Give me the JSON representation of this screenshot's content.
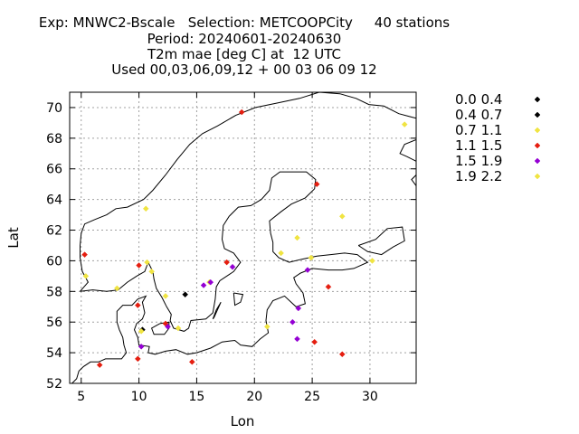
{
  "chart_data": {
    "type": "scatter",
    "title_lines": [
      "Exp: MNWC2-Bscale   Selection: METCOOPCity     40 stations",
      "Period: 20240601-20240630",
      "T2m mae [deg C] at  12 UTC",
      "Used 00,03,06,09,12 + 00 03 06 09 12"
    ],
    "xlabel": "Lon",
    "ylabel": "Lat",
    "xlim": [
      4,
      34
    ],
    "ylim": [
      52,
      71
    ],
    "xticks": [
      5,
      10,
      15,
      20,
      25,
      30
    ],
    "yticks": [
      52,
      54,
      56,
      58,
      60,
      62,
      64,
      66,
      68,
      70
    ],
    "grid": true,
    "legend_position": "right",
    "series": [
      {
        "name": "0.0 0.4",
        "color": "#000000",
        "points": [
          [
            14.0,
            57.8
          ]
        ]
      },
      {
        "name": "0.4 0.7",
        "color": "#000000",
        "points": [
          [
            10.3,
            55.5
          ]
        ]
      },
      {
        "name": "0.7 1.1",
        "color": "#f0e442",
        "points": [
          [
            10.6,
            63.4
          ],
          [
            10.7,
            59.9
          ],
          [
            11.1,
            59.3
          ],
          [
            8.1,
            58.2
          ],
          [
            5.4,
            59.0
          ],
          [
            12.3,
            57.7
          ],
          [
            10.2,
            55.4
          ],
          [
            13.4,
            55.6
          ],
          [
            21.1,
            55.7
          ],
          [
            22.3,
            60.5
          ],
          [
            23.7,
            61.5
          ],
          [
            24.9,
            60.2
          ],
          [
            27.6,
            62.9
          ],
          [
            30.2,
            60.0
          ],
          [
            33.0,
            68.9
          ],
          [
            16.1,
            58.6
          ]
        ]
      },
      {
        "name": "1.1 1.5",
        "color": "#e51e10",
        "points": [
          [
            5.3,
            60.4
          ],
          [
            10.0,
            59.7
          ],
          [
            17.6,
            59.9
          ],
          [
            25.4,
            65.0
          ],
          [
            26.4,
            58.3
          ],
          [
            9.9,
            57.1
          ],
          [
            12.3,
            55.9
          ],
          [
            14.6,
            53.4
          ],
          [
            9.9,
            53.6
          ],
          [
            25.2,
            54.7
          ],
          [
            27.6,
            53.9
          ],
          [
            6.6,
            53.2
          ],
          [
            18.9,
            69.7
          ]
        ]
      },
      {
        "name": "1.5 1.9",
        "color": "#9400d3",
        "points": [
          [
            15.6,
            58.4
          ],
          [
            16.2,
            58.6
          ],
          [
            18.1,
            59.6
          ],
          [
            24.6,
            59.4
          ],
          [
            23.8,
            56.9
          ],
          [
            23.3,
            56.0
          ],
          [
            23.7,
            54.9
          ],
          [
            10.2,
            54.4
          ],
          [
            12.5,
            55.7
          ]
        ]
      },
      {
        "name": "1.9 2.2",
        "color": "#f0e442",
        "points": []
      }
    ]
  },
  "map_coastlines": [
    [
      [
        4.9,
        58.0
      ],
      [
        5.6,
        58.6
      ],
      [
        5.1,
        59.3
      ],
      [
        4.9,
        60.2
      ],
      [
        4.9,
        61.0
      ],
      [
        5.0,
        61.8
      ],
      [
        5.3,
        62.4
      ],
      [
        6.2,
        62.7
      ],
      [
        7.2,
        63.0
      ],
      [
        8.0,
        63.4
      ],
      [
        9.0,
        63.5
      ],
      [
        10.4,
        64.0
      ],
      [
        11.2,
        64.6
      ],
      [
        12.3,
        65.6
      ],
      [
        13.3,
        66.6
      ],
      [
        14.4,
        67.6
      ],
      [
        15.5,
        68.3
      ],
      [
        16.8,
        68.8
      ],
      [
        18.4,
        69.5
      ],
      [
        20.1,
        70.0
      ],
      [
        22.0,
        70.3
      ],
      [
        23.9,
        70.6
      ],
      [
        25.6,
        71.0
      ],
      [
        27.4,
        70.9
      ],
      [
        28.8,
        70.6
      ],
      [
        29.9,
        70.2
      ],
      [
        31.2,
        70.1
      ],
      [
        32.5,
        69.6
      ],
      [
        33.5,
        69.4
      ],
      [
        34.0,
        69.3
      ]
    ],
    [
      [
        4.9,
        58.0
      ],
      [
        6.0,
        58.1
      ],
      [
        7.2,
        58.0
      ],
      [
        8.2,
        58.1
      ],
      [
        9.0,
        58.6
      ],
      [
        9.8,
        59.0
      ],
      [
        10.5,
        59.3
      ],
      [
        10.8,
        59.9
      ],
      [
        11.2,
        59.3
      ],
      [
        11.3,
        58.8
      ],
      [
        11.5,
        58.2
      ],
      [
        12.0,
        57.6
      ],
      [
        12.4,
        57.0
      ],
      [
        12.8,
        56.5
      ],
      [
        12.7,
        56.1
      ],
      [
        13.0,
        55.6
      ],
      [
        13.9,
        55.4
      ],
      [
        14.3,
        55.6
      ],
      [
        14.5,
        56.1
      ],
      [
        15.8,
        56.2
      ],
      [
        16.4,
        56.6
      ],
      [
        16.6,
        57.5
      ],
      [
        16.7,
        58.3
      ],
      [
        17.0,
        58.7
      ],
      [
        18.2,
        59.3
      ],
      [
        18.8,
        59.9
      ],
      [
        18.2,
        60.5
      ],
      [
        17.4,
        60.8
      ],
      [
        17.2,
        61.4
      ],
      [
        17.3,
        62.3
      ],
      [
        17.8,
        62.9
      ],
      [
        18.6,
        63.5
      ],
      [
        19.7,
        63.6
      ],
      [
        20.6,
        64.0
      ],
      [
        21.3,
        64.6
      ],
      [
        21.5,
        65.4
      ],
      [
        22.2,
        65.8
      ],
      [
        23.3,
        65.8
      ],
      [
        24.5,
        65.8
      ],
      [
        25.3,
        65.3
      ],
      [
        25.2,
        64.7
      ],
      [
        24.4,
        64.1
      ],
      [
        23.2,
        63.7
      ],
      [
        22.3,
        63.2
      ],
      [
        21.3,
        62.6
      ],
      [
        21.4,
        61.8
      ],
      [
        21.6,
        61.2
      ],
      [
        21.6,
        60.6
      ],
      [
        22.1,
        60.2
      ],
      [
        23.0,
        59.9
      ],
      [
        24.1,
        60.1
      ],
      [
        25.4,
        60.3
      ],
      [
        26.6,
        60.4
      ],
      [
        27.8,
        60.5
      ],
      [
        28.9,
        60.4
      ],
      [
        29.8,
        59.9
      ],
      [
        28.6,
        59.5
      ],
      [
        27.6,
        59.4
      ],
      [
        26.4,
        59.4
      ],
      [
        25.0,
        59.5
      ],
      [
        24.0,
        59.2
      ],
      [
        23.4,
        58.9
      ],
      [
        23.6,
        58.5
      ],
      [
        24.2,
        57.9
      ],
      [
        24.4,
        57.2
      ],
      [
        23.6,
        57.0
      ],
      [
        22.6,
        57.7
      ],
      [
        21.6,
        57.4
      ],
      [
        21.1,
        56.8
      ],
      [
        21.0,
        56.1
      ],
      [
        21.2,
        55.3
      ],
      [
        20.5,
        54.9
      ],
      [
        19.8,
        54.4
      ],
      [
        18.8,
        54.5
      ],
      [
        18.3,
        54.8
      ],
      [
        17.2,
        54.7
      ],
      [
        16.2,
        54.3
      ],
      [
        15.0,
        54.0
      ],
      [
        14.2,
        53.9
      ],
      [
        13.2,
        54.2
      ],
      [
        12.3,
        54.1
      ],
      [
        11.4,
        53.9
      ],
      [
        10.8,
        54.0
      ],
      [
        10.9,
        54.4
      ],
      [
        10.0,
        54.5
      ],
      [
        9.9,
        55.0
      ],
      [
        9.6,
        55.5
      ],
      [
        9.8,
        55.9
      ],
      [
        10.3,
        56.2
      ],
      [
        10.5,
        56.6
      ],
      [
        10.3,
        57.3
      ],
      [
        10.6,
        57.7
      ],
      [
        9.9,
        57.5
      ],
      [
        9.4,
        57.1
      ],
      [
        8.6,
        57.1
      ],
      [
        8.1,
        56.7
      ],
      [
        8.1,
        56.0
      ],
      [
        8.3,
        55.5
      ],
      [
        8.6,
        55.0
      ],
      [
        8.7,
        54.5
      ],
      [
        8.9,
        54.0
      ],
      [
        8.5,
        53.6
      ],
      [
        8.0,
        53.6
      ],
      [
        7.1,
        53.6
      ],
      [
        6.5,
        53.4
      ],
      [
        5.8,
        53.4
      ],
      [
        5.2,
        53.1
      ],
      [
        4.8,
        52.8
      ],
      [
        4.6,
        52.3
      ],
      [
        4.2,
        52.0
      ],
      [
        4.0,
        52.0
      ]
    ],
    [
      [
        11.8,
        55.9
      ],
      [
        12.6,
        56.0
      ],
      [
        12.6,
        55.6
      ],
      [
        12.2,
        55.2
      ],
      [
        11.3,
        55.2
      ],
      [
        11.1,
        55.6
      ],
      [
        11.8,
        55.9
      ]
    ],
    [
      [
        18.2,
        57.9
      ],
      [
        19.0,
        57.8
      ],
      [
        18.8,
        57.3
      ],
      [
        18.3,
        57.1
      ],
      [
        18.2,
        57.9
      ]
    ],
    [
      [
        16.4,
        56.2
      ],
      [
        16.7,
        56.8
      ],
      [
        17.1,
        57.3
      ],
      [
        16.5,
        56.3
      ],
      [
        16.4,
        56.2
      ]
    ],
    [
      [
        29.0,
        61.0
      ],
      [
        30.5,
        61.4
      ],
      [
        31.5,
        62.1
      ],
      [
        32.8,
        62.2
      ],
      [
        33.0,
        61.3
      ],
      [
        32.0,
        60.9
      ],
      [
        31.0,
        60.4
      ],
      [
        29.8,
        60.6
      ],
      [
        29.0,
        61.0
      ]
    ],
    [
      [
        34.0,
        66.5
      ],
      [
        33.2,
        66.8
      ],
      [
        32.6,
        67.0
      ],
      [
        33.0,
        67.6
      ],
      [
        34.0,
        67.9
      ]
    ],
    [
      [
        34.0,
        64.9
      ],
      [
        33.6,
        65.3
      ],
      [
        34.0,
        65.6
      ]
    ]
  ]
}
